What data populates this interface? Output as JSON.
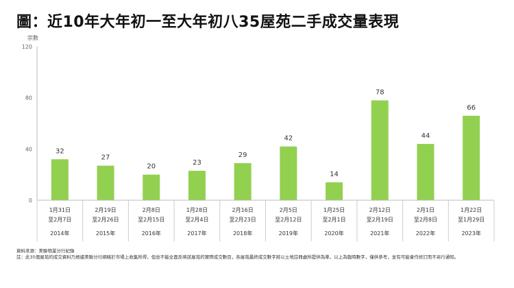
{
  "title": "圖：近10年大年初一至大年初八35屋苑二手成交量表現",
  "chart_data": {
    "type": "bar",
    "ylabel": "宗數",
    "ylim": [
      0,
      120
    ],
    "yticks": [
      0,
      40,
      80,
      120
    ],
    "categories": [
      {
        "date1": "1月31日",
        "date2": "至2月7日",
        "year": "2014年"
      },
      {
        "date1": "2月19日",
        "date2": "至2月26日",
        "year": "2015年"
      },
      {
        "date1": "2月8日",
        "date2": "至2月15日",
        "year": "2016年"
      },
      {
        "date1": "1月28日",
        "date2": "至2月4日",
        "year": "2017年"
      },
      {
        "date1": "2月16日",
        "date2": "至2月23日",
        "year": "2018年"
      },
      {
        "date1": "2月5日",
        "date2": "至2月12日",
        "year": "2019年"
      },
      {
        "date1": "1月25日",
        "date2": "至2月1日",
        "year": "2020年"
      },
      {
        "date1": "2月12日",
        "date2": "至2月19日",
        "year": "2021年"
      },
      {
        "date1": "2月1日",
        "date2": "至2月8日",
        "year": "2022年"
      },
      {
        "date1": "1月22日",
        "date2": "至1月29日",
        "year": "2023年"
      }
    ],
    "values": [
      32,
      27,
      20,
      23,
      29,
      42,
      14,
      78,
      44,
      66
    ],
    "bar_color": "#92d050",
    "grid": false
  },
  "footer": {
    "source": "資料來源：美聯物業分行紀錄",
    "note": "註：此35個屋苑的成交資料乃根據美聯分行網絡於市場上收集所得，但並不能全面反映該屋苑的實際成交數目，各屋苑最終成交數字將以土地註冊處所提供為準，以上為臨時數字，僅供參考，並有可能會作修訂而不另行通知。"
  }
}
